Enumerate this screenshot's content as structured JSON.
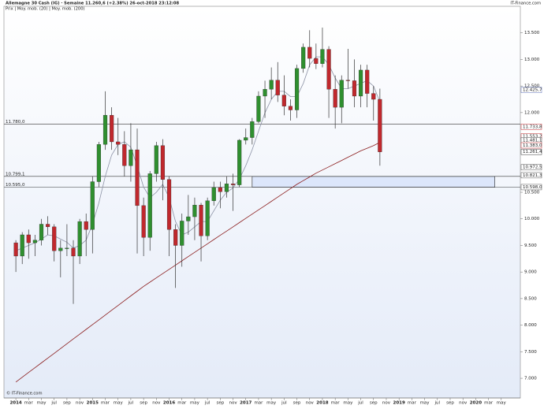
{
  "chart_data": {
    "type": "candlestick",
    "title": "Allemagne 30 Cash (IG) · Semaine   11.260,6 (+2.38%)   26-oct-2018 23:12:08",
    "legend_text": "Prix | Moy. mob. (20) | Moy. mob. (200)",
    "source_top": "IT-Finance.com",
    "source_bottom": "© IT-Finance.com",
    "up_color": "#2f8f2f",
    "down_color": "#c0282d",
    "x": [
      "2014-01",
      "2014-02",
      "2014-03",
      "2014-04",
      "2014-05",
      "2014-06",
      "2014-07",
      "2014-08",
      "2014-09",
      "2014-10",
      "2014-11",
      "2014-12",
      "2015-01",
      "2015-02",
      "2015-03",
      "2015-04",
      "2015-05",
      "2015-06",
      "2015-07",
      "2015-08",
      "2015-09",
      "2015-10",
      "2015-11",
      "2015-12",
      "2016-01",
      "2016-02",
      "2016-03",
      "2016-04",
      "2016-05",
      "2016-06",
      "2016-07",
      "2016-08",
      "2016-09",
      "2016-10",
      "2016-11",
      "2016-12",
      "2017-01",
      "2017-02",
      "2017-03",
      "2017-04",
      "2017-05",
      "2017-06",
      "2017-07",
      "2017-08",
      "2017-09",
      "2017-10",
      "2017-11",
      "2017-12",
      "2018-01",
      "2018-02",
      "2018-03",
      "2018-04",
      "2018-05",
      "2018-06",
      "2018-07",
      "2018-08",
      "2018-09",
      "2018-10"
    ],
    "open": [
      9550,
      9300,
      9700,
      9550,
      9600,
      9900,
      9850,
      9400,
      9450,
      9450,
      9300,
      9950,
      9800,
      10700,
      11400,
      11950,
      11450,
      11400,
      11000,
      11300,
      10250,
      9650,
      10850,
      11380,
      10740,
      9800,
      9500,
      9960,
      10040,
      10260,
      9680,
      10340,
      10590,
      10510,
      10660,
      10640,
      11480,
      11530,
      11830,
      12310,
      12440,
      12610,
      12330,
      12120,
      12050,
      12830,
      13230,
      13020,
      12920,
      13190,
      12440,
      12100,
      12610,
      12600,
      12310,
      12800,
      12360,
      12250
    ],
    "high": [
      9600,
      9750,
      9800,
      9700,
      10000,
      10050,
      9900,
      9600,
      9900,
      9600,
      10000,
      10100,
      10800,
      11450,
      12400,
      12100,
      11900,
      11650,
      11800,
      11700,
      10400,
      10900,
      11450,
      11500,
      10800,
      9900,
      10100,
      10450,
      10400,
      10300,
      10400,
      10700,
      10700,
      10800,
      10850,
      11500,
      11700,
      11900,
      12400,
      12600,
      12850,
      12950,
      12700,
      12250,
      12900,
      13300,
      13550,
      13300,
      13600,
      13250,
      12700,
      12700,
      13200,
      13000,
      12900,
      12900,
      12500,
      12450
    ],
    "low": [
      9000,
      9150,
      9250,
      9300,
      9500,
      9700,
      9200,
      8900,
      9300,
      8400,
      9150,
      9300,
      9350,
      10600,
      11300,
      11300,
      11200,
      10800,
      10700,
      9350,
      9300,
      9400,
      10700,
      10350,
      9300,
      8700,
      9100,
      9700,
      9600,
      9200,
      9600,
      10250,
      10200,
      10400,
      10150,
      10600,
      11400,
      11400,
      11800,
      11900,
      12250,
      12200,
      11950,
      11850,
      11900,
      12750,
      12850,
      12820,
      12850,
      11900,
      11700,
      11800,
      12450,
      12100,
      12100,
      12100,
      11850,
      11000
    ],
    "close": [
      9300,
      9700,
      9550,
      9600,
      9900,
      9850,
      9400,
      9450,
      9450,
      9300,
      9950,
      9800,
      10700,
      11400,
      11950,
      11450,
      11400,
      11000,
      11300,
      10250,
      9650,
      10850,
      11380,
      10740,
      9800,
      9500,
      9960,
      10040,
      10260,
      9680,
      10340,
      10590,
      10510,
      10660,
      10640,
      11480,
      11530,
      11830,
      12310,
      12440,
      12610,
      12330,
      12120,
      12050,
      12830,
      13230,
      13020,
      12920,
      13190,
      12440,
      12100,
      12610,
      12600,
      12310,
      12800,
      12360,
      12250,
      11260
    ],
    "series": [
      {
        "color": "#8d93a6",
        "values": [
          9400,
          9450,
          9500,
          9550,
          9620,
          9700,
          9680,
          9620,
          9560,
          9450,
          9500,
          9600,
          9900,
          10300,
          10800,
          11200,
          11400,
          11450,
          11350,
          11000,
          10600,
          10400,
          10500,
          10650,
          10400,
          9950,
          9700,
          9750,
          9850,
          9950,
          9950,
          10150,
          10350,
          10500,
          10580,
          10750,
          11000,
          11300,
          11650,
          12000,
          12250,
          12400,
          12400,
          12300,
          12300,
          12550,
          12900,
          13050,
          13050,
          12900,
          12650,
          12450,
          12450,
          12500,
          12550,
          12600,
          12500,
          12200
        ]
      },
      {
        "color": "#8b1c1c",
        "values": [
          6930,
          7020,
          7110,
          7200,
          7290,
          7380,
          7470,
          7560,
          7650,
          7740,
          7830,
          7920,
          8010,
          8100,
          8190,
          8280,
          8370,
          8460,
          8550,
          8640,
          8730,
          8810,
          8890,
          8970,
          9050,
          9130,
          9210,
          9290,
          9370,
          9450,
          9530,
          9610,
          9690,
          9770,
          9850,
          9930,
          10010,
          10090,
          10170,
          10250,
          10330,
          10410,
          10490,
          10570,
          10650,
          10720,
          10790,
          10860,
          10920,
          10980,
          11040,
          11100,
          11160,
          11220,
          11280,
          11330,
          11380,
          11440
        ]
      }
    ],
    "xlim": [
      "2013-12",
      "2020-07"
    ],
    "ylim": [
      6630,
      14000
    ],
    "xticks": [
      {
        "value": "2014-01",
        "label": "2014"
      },
      {
        "value": "2014-03",
        "label": "mar"
      },
      {
        "value": "2014-05",
        "label": "may"
      },
      {
        "value": "2014-07",
        "label": "jul"
      },
      {
        "value": "2014-09",
        "label": "sep"
      },
      {
        "value": "2014-11",
        "label": "nov"
      },
      {
        "value": "2015-01",
        "label": "2015"
      },
      {
        "value": "2015-03",
        "label": "mar"
      },
      {
        "value": "2015-05",
        "label": "may"
      },
      {
        "value": "2015-07",
        "label": "jul"
      },
      {
        "value": "2015-09",
        "label": "sep"
      },
      {
        "value": "2015-11",
        "label": "nov"
      },
      {
        "value": "2016-01",
        "label": "2016"
      },
      {
        "value": "2016-03",
        "label": "mar"
      },
      {
        "value": "2016-05",
        "label": "may"
      },
      {
        "value": "2016-07",
        "label": "jul"
      },
      {
        "value": "2016-09",
        "label": "sep"
      },
      {
        "value": "2016-11",
        "label": "nov"
      },
      {
        "value": "2017-01",
        "label": "2017"
      },
      {
        "value": "2017-03",
        "label": "mar"
      },
      {
        "value": "2017-05",
        "label": "may"
      },
      {
        "value": "2017-07",
        "label": "jul"
      },
      {
        "value": "2017-09",
        "label": "sep"
      },
      {
        "value": "2017-11",
        "label": "nov"
      },
      {
        "value": "2018-01",
        "label": "2018"
      },
      {
        "value": "2018-03",
        "label": "mar"
      },
      {
        "value": "2018-05",
        "label": "may"
      },
      {
        "value": "2018-07",
        "label": "jul"
      },
      {
        "value": "2018-09",
        "label": "sep"
      },
      {
        "value": "2018-11",
        "label": "nov"
      },
      {
        "value": "2019-01",
        "label": "2019"
      },
      {
        "value": "2019-03",
        "label": "mar"
      },
      {
        "value": "2019-05",
        "label": "may"
      },
      {
        "value": "2019-07",
        "label": "jul"
      },
      {
        "value": "2019-09",
        "label": "sep"
      },
      {
        "value": "2019-11",
        "label": "nov"
      },
      {
        "value": "2020-01",
        "label": "2020"
      },
      {
        "value": "2020-03",
        "label": "mar"
      },
      {
        "value": "2020-05",
        "label": "may"
      }
    ],
    "yticks": [
      {
        "value": 7000,
        "label": "7.000"
      },
      {
        "value": 7500,
        "label": "7.500"
      },
      {
        "value": 8000,
        "label": "8.000"
      },
      {
        "value": 8500,
        "label": "8.500"
      },
      {
        "value": 9000,
        "label": "9.000"
      },
      {
        "value": 9500,
        "label": "9.500"
      },
      {
        "value": 10000,
        "label": "10.000"
      },
      {
        "value": 10500,
        "label": "10.500"
      },
      {
        "value": 12000,
        "label": "12.000"
      },
      {
        "value": 12500,
        "label": "12.500"
      },
      {
        "value": 13000,
        "label": "13.000"
      },
      {
        "value": 13500,
        "label": "13.500"
      }
    ],
    "levels": [
      {
        "value": 11780,
        "label": "11.780,0"
      },
      {
        "value": 10799.1,
        "label": "10.799,1"
      },
      {
        "value": 10595,
        "label": "10.595,0"
      }
    ],
    "zone": {
      "x": [
        "2017-02",
        "2020-04"
      ],
      "y": [
        10595,
        10799.1
      ]
    },
    "price_tags": [
      {
        "value": 12425.7,
        "label": "12.425,7",
        "color": "#5a6fb5"
      },
      {
        "value": 11733.8,
        "label": "11.733,8",
        "color": "#c0282d"
      },
      {
        "value": 11553.2,
        "label": "11.553,2",
        "color": "#c0282d"
      },
      {
        "value": 11481.1,
        "label": "11.481,1",
        "color": "#555555"
      },
      {
        "value": 11383,
        "label": "11.383,0",
        "color": "#c0282d"
      },
      {
        "value": 11261.4,
        "label": "11.261,4",
        "color": "#333333"
      },
      {
        "value": 10972.5,
        "label": "10.972,5",
        "color": "#555555"
      },
      {
        "value": 10821.3,
        "label": "10.821,3",
        "color": "#555555"
      },
      {
        "value": 10598,
        "label": "10.598,0",
        "color": "#555555"
      }
    ]
  }
}
